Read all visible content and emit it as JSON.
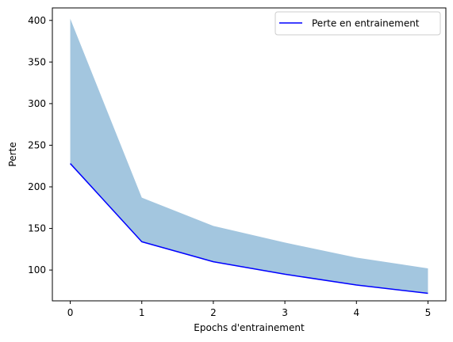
{
  "chart_data": {
    "type": "line",
    "title": "",
    "xlabel": "Epochs d'entrainement",
    "ylabel": "Perte",
    "x": [
      0,
      1,
      2,
      3,
      4,
      5
    ],
    "xticks": [
      0,
      1,
      2,
      3,
      4,
      5
    ],
    "yticks": [
      100,
      150,
      200,
      250,
      300,
      350,
      400
    ],
    "xlim": [
      -0.25,
      5.25
    ],
    "ylim": [
      63,
      415
    ],
    "grid": false,
    "legend_position": "top-right",
    "series": [
      {
        "name": "Perte en entrainement",
        "kind": "line",
        "color": "#0000ff",
        "values": [
          228,
          134,
          110,
          95,
          82,
          72
        ]
      }
    ],
    "band": {
      "color": "#a3c6df",
      "lower": [
        228,
        134,
        110,
        95,
        82,
        72
      ],
      "upper": [
        402,
        187,
        153,
        133,
        115,
        102
      ]
    }
  }
}
